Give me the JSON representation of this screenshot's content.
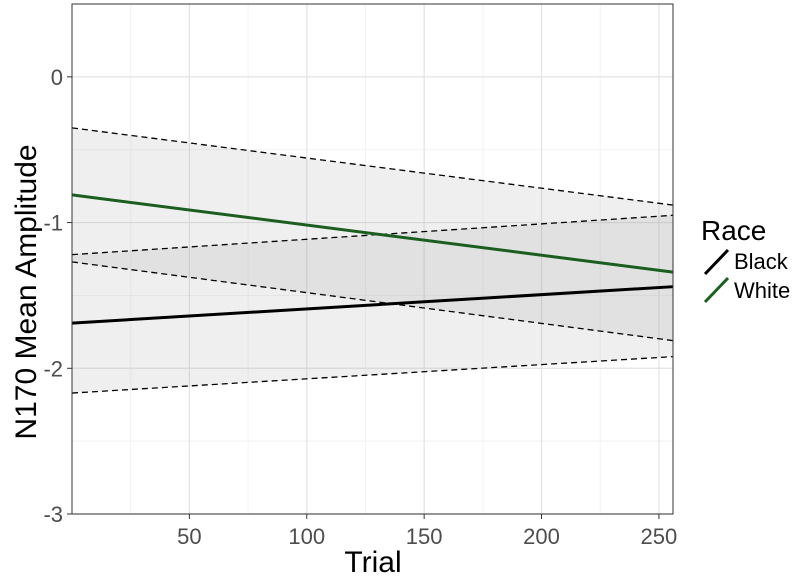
{
  "chart_data": {
    "type": "line",
    "xlabel": "Trial",
    "ylabel": "N170 Mean Amplitude",
    "xlim": [
      0,
      256
    ],
    "ylim": [
      -3,
      0.5
    ],
    "x_ticks": [
      50,
      100,
      150,
      200,
      250
    ],
    "y_ticks": [
      -3,
      -2,
      -1,
      0
    ],
    "grid": true,
    "legend": {
      "title": "Race",
      "position": "right",
      "entries": [
        "Black",
        "White"
      ]
    },
    "series": [
      {
        "name": "Black",
        "color": "#000000",
        "x": [
          0,
          256
        ],
        "y": [
          -1.69,
          -1.44
        ],
        "ci_lower": [
          -2.17,
          -1.92
        ],
        "ci_upper": [
          -1.22,
          -0.95
        ]
      },
      {
        "name": "White",
        "color": "#1b5e20",
        "x": [
          0,
          256
        ],
        "y": [
          -0.81,
          -1.34
        ],
        "ci_lower": [
          -1.27,
          -1.81
        ],
        "ci_upper": [
          -0.35,
          -0.88
        ]
      }
    ]
  }
}
